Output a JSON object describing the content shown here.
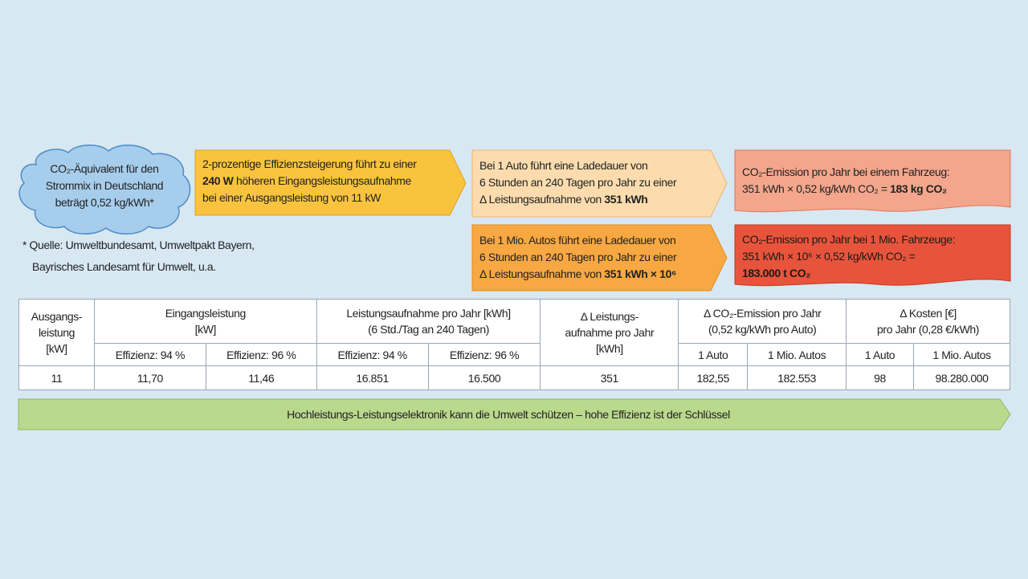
{
  "cloud": [
    [
      "CO₂-Äquivalent für den"
    ],
    [
      "Strommix in Deutschland"
    ],
    [
      "beträgt 0,52 kg/kWh*"
    ]
  ],
  "footnote": "* Quelle: Umweltbundesamt, Umweltpakt Bayern,\nBayrisches Landesamt für Umwelt, u.a.",
  "efficiency_box": [
    [
      "2-prozentige Effizienzsteigerung führt zu einer"
    ],
    [
      {
        "bold": "240 W"
      },
      " höheren Eingangsleistungsaufnahme"
    ],
    [
      "bei einer Ausgangsleistung von 11 kW"
    ]
  ],
  "one_car_box": [
    [
      "Bei 1 Auto führt eine Ladedauer von"
    ],
    [
      "6 Stunden an 240 Tagen pro Jahr zu einer"
    ],
    [
      "Δ Leistungsaufnahme von ",
      {
        "bold": "351 kWh"
      }
    ]
  ],
  "one_car_emission": [
    [
      "CO₂-Emission pro Jahr bei einem Fahrzeug:"
    ],
    [
      "351 kWh × 0,52 kg/kWh CO₂ = ",
      {
        "bold": "183 kg CO₂"
      }
    ]
  ],
  "million_box": [
    [
      "Bei 1 Mio. Autos führt eine Ladedauer von"
    ],
    [
      "6 Stunden an 240 Tagen pro Jahr zu einer"
    ],
    [
      "Δ Leistungsaufnahme von ",
      {
        "bold": "351 kWh × 10⁶"
      }
    ]
  ],
  "million_emission": [
    [
      "CO₂-Emission pro Jahr bei 1 Mio. Fahrzeuge:"
    ],
    [
      "351 kWh × 10⁶ × 0,52 kg/kWh CO₂ ="
    ],
    [
      {
        "bold": "183.000 t CO₂"
      }
    ]
  ],
  "table": {
    "headers": [
      "Ausgangs-\nleistung\n[kW]",
      "Eingangsleistung\n[kW]",
      "Leistungsaufnahme pro Jahr [kWh]\n(6 Std./Tag an 240 Tagen)",
      "Δ Leistungs-\naufnahme pro Jahr\n[kWh]",
      "Δ CO₂-Emission pro Jahr\n(0,52 kg/kWh pro Auto)",
      "Δ Kosten [€]\npro Jahr (0,28 €/kWh)"
    ],
    "subheaders": [
      "Effizienz: 94 %",
      "Effizienz: 96 %",
      "Effizienz: 94 %",
      "Effizienz: 96 %",
      "1 Auto",
      "1 Mio. Autos",
      "1 Auto",
      "1 Mio. Autos"
    ],
    "row": [
      "11",
      "11,70",
      "11,46",
      "16.851",
      "16.500",
      "351",
      "182,55",
      "182.553",
      "98",
      "98.280.000"
    ]
  },
  "banner": "Hochleistungs-Leistungselektronik kann die Umwelt schützen – hohe Effizienz ist der Schlüssel"
}
